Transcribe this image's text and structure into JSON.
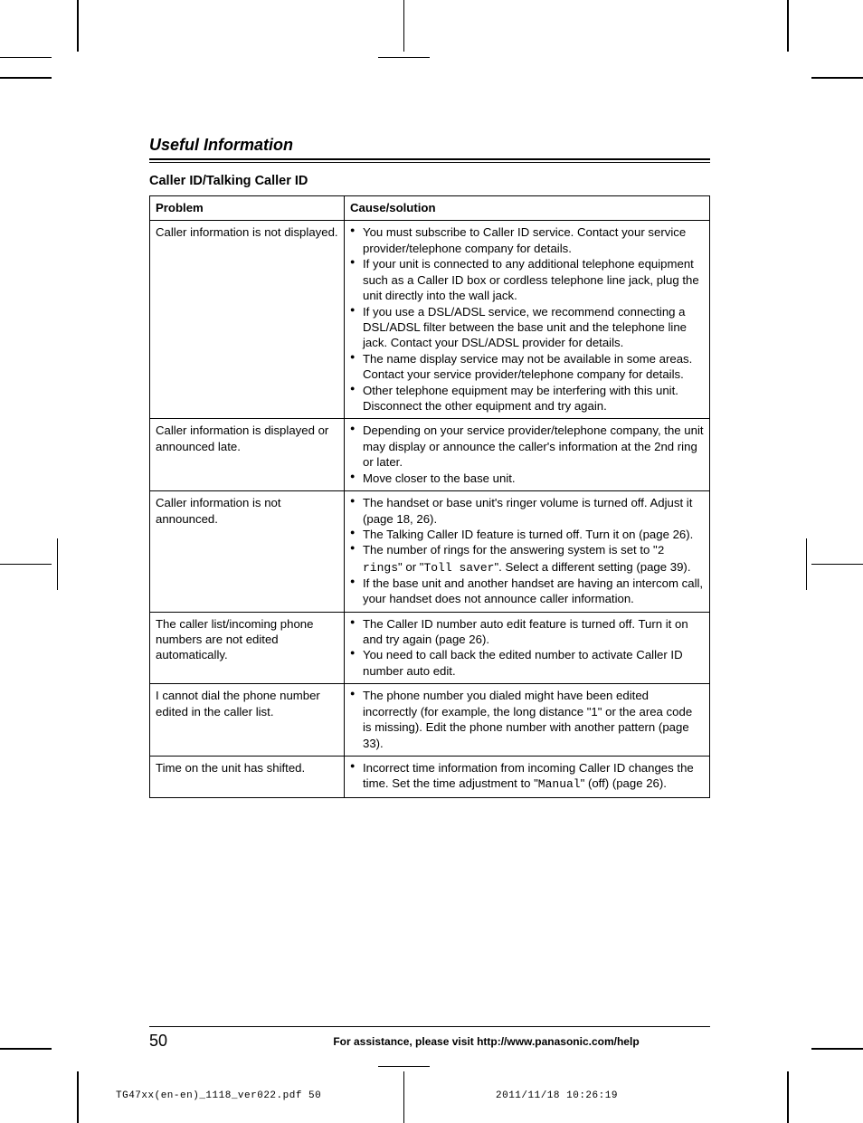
{
  "section_title": "Useful Information",
  "subheading": "Caller ID/Talking Caller ID",
  "table": {
    "headers": [
      "Problem",
      "Cause/solution"
    ],
    "rows": [
      {
        "problem": "Caller information is not displayed.",
        "solutions": [
          "You must subscribe to Caller ID service. Contact your service provider/telephone company for details.",
          "If your unit is connected to any additional telephone equipment such as a Caller ID box or cordless telephone line jack, plug the unit directly into the wall jack.",
          "If you use a DSL/ADSL service, we recommend connecting a DSL/ADSL filter between the base unit and the telephone line jack. Contact your DSL/ADSL provider for details.",
          "The name display service may not be available in some areas. Contact your service provider/telephone company for details.",
          "Other telephone equipment may be interfering with this unit. Disconnect the other equipment and try again."
        ]
      },
      {
        "problem": "Caller information is displayed or announced late.",
        "solutions": [
          "Depending on your service provider/telephone company, the unit may display or announce the caller's information at the 2nd ring or later.",
          "Move closer to the base unit."
        ]
      },
      {
        "problem": "Caller information is not announced.",
        "solutions_html": [
          "The handset or base unit's ringer volume is turned off. Adjust it (page 18, 26).",
          "The Talking Caller ID feature is turned off. Turn it on (page 26).",
          "The number of rings for the answering system is set to \"<span class='mono'>2 rings</span>\" or \"<span class='mono'>Toll saver</span>\". Select a different setting (page 39).",
          "If the base unit and another handset are having an intercom call, your handset does not announce caller information."
        ]
      },
      {
        "problem": "The caller list/incoming phone numbers are not edited automatically.",
        "solutions": [
          "The Caller ID number auto edit feature is turned off. Turn it on and try again (page 26).",
          "You need to call back the edited number to activate Caller ID number auto edit."
        ]
      },
      {
        "problem": "I cannot dial the phone number edited in the caller list.",
        "solutions": [
          "The phone number you dialed might have been edited incorrectly (for example, the long distance \"1\" or the area code is missing). Edit the phone number with another pattern (page 33)."
        ]
      },
      {
        "problem": "Time on the unit has shifted.",
        "solutions_html": [
          "Incorrect time information from incoming Caller ID changes the time. Set the time adjustment to \"<span class='mono'>Manual</span>\" (off) (page 26)."
        ]
      }
    ]
  },
  "page_number": "50",
  "footer_text": "For assistance, please visit http://www.panasonic.com/help",
  "print_info_left": "TG47xx(en-en)_1118_ver022.pdf   50",
  "print_info_right": "2011/11/18   10:26:19",
  "style": {
    "text_color": "#000000",
    "bg_color": "#ffffff",
    "base_fontsize": 13.2,
    "title_fontsize": 18,
    "sub_fontsize": 14.5,
    "mono_family": "Courier New"
  }
}
